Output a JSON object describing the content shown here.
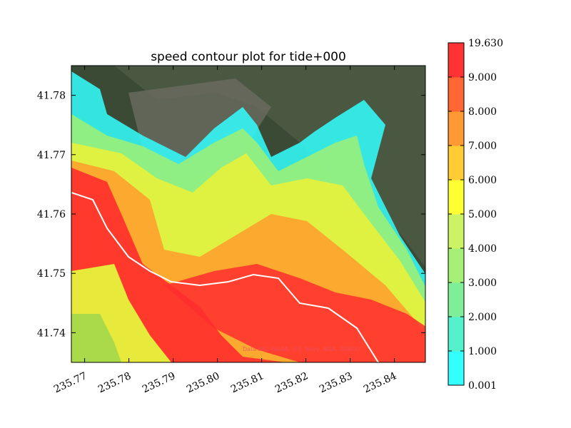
{
  "chart_data": {
    "type": "heatmap",
    "title": "speed contour plot for tide+000",
    "xlabel": "",
    "ylabel": "",
    "xlim": [
      235.767,
      235.847
    ],
    "ylim": [
      41.735,
      41.785
    ],
    "x_ticks": [
      "235.77",
      "235.78",
      "235.79",
      "235.80",
      "235.81",
      "235.82",
      "235.83",
      "235.84"
    ],
    "x_tick_values": [
      235.77,
      235.78,
      235.79,
      235.8,
      235.81,
      235.82,
      235.83,
      235.84
    ],
    "y_ticks": [
      "41.74",
      "41.75",
      "41.76",
      "41.77",
      "41.78"
    ],
    "y_tick_values": [
      41.74,
      41.75,
      41.76,
      41.77,
      41.78
    ],
    "attribution": "Data SIO, NOAA, U.S. Navy, NGA, GEBCO",
    "colorbar": {
      "ticks": [
        "0.001",
        "1.000",
        "2.000",
        "3.000",
        "4.000",
        "5.000",
        "6.000",
        "7.000",
        "8.000",
        "9.000",
        "19.630"
      ],
      "colors": [
        "#33ffff",
        "#55f0cc",
        "#7fee99",
        "#a6f077",
        "#ccf266",
        "#ffff33",
        "#ffcc33",
        "#ff9933",
        "#ff6633",
        "#ff3333"
      ]
    },
    "grid": false
  }
}
